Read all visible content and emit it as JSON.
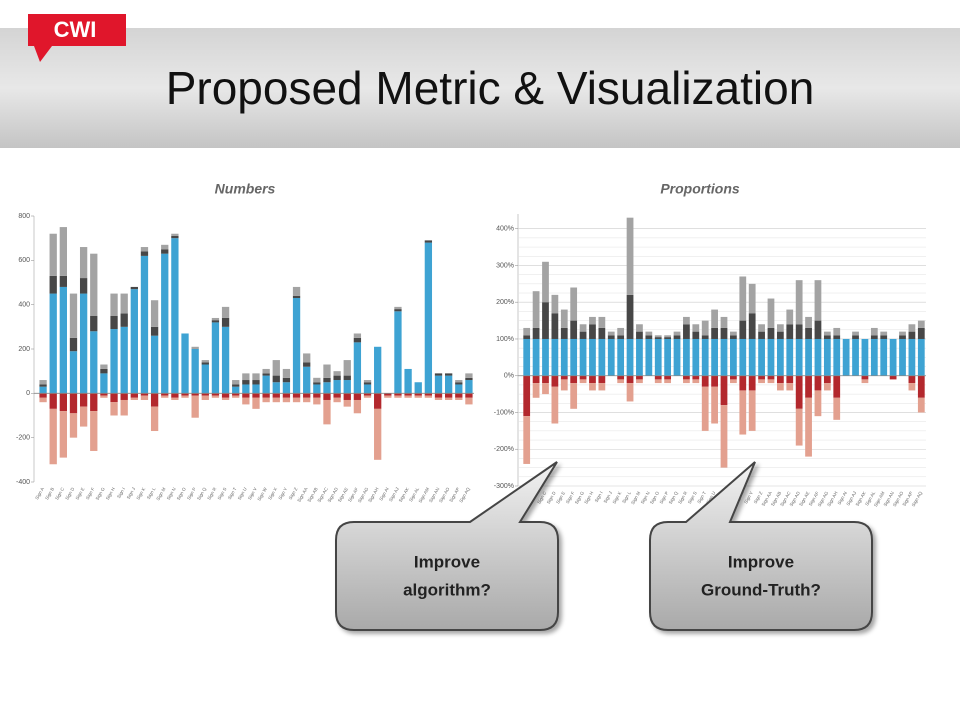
{
  "logo": "CWI",
  "title": "Proposed Metric & Visualization",
  "callouts": [
    [
      "Improve",
      "algorithm?"
    ],
    [
      "Improve",
      "Ground-Truth?"
    ]
  ],
  "chart_data": [
    {
      "type": "bar",
      "stacked": true,
      "title": "Numbers",
      "grid": false,
      "categories": [
        "Sign A",
        "Sign B",
        "Sign C",
        "Sign D",
        "Sign E",
        "Sign F",
        "Sign G",
        "Sign H",
        "Sign I",
        "Sign J",
        "Sign K",
        "Sign L",
        "Sign M",
        "Sign N",
        "Sign O",
        "Sign P",
        "Sign Q",
        "Sign R",
        "Sign S",
        "Sign T",
        "Sign U",
        "Sign V",
        "Sign W",
        "Sign X",
        "Sign Y",
        "Sign Z",
        "Sign AA",
        "Sign AB",
        "Sign AC",
        "Sign AD",
        "Sign AE",
        "Sign AF",
        "Sign AG",
        "Sign AH",
        "Sign AI",
        "Sign AJ",
        "Sign AK",
        "Sign AL",
        "Sign AM",
        "Sign AN",
        "Sign AO",
        "Sign AP",
        "Sign AQ"
      ],
      "ylim": [
        -400,
        800
      ],
      "yticks": [
        -400,
        -200,
        0,
        200,
        400,
        600,
        800
      ],
      "series": [
        {
          "color": "#3ea3d3",
          "values": [
            30,
            450,
            480,
            190,
            450,
            280,
            90,
            290,
            300,
            470,
            620,
            260,
            630,
            700,
            270,
            200,
            130,
            320,
            300,
            30,
            40,
            40,
            80,
            50,
            50,
            430,
            120,
            40,
            50,
            60,
            60,
            230,
            40,
            210,
            0,
            370,
            110,
            50,
            680,
            80,
            80,
            40,
            60
          ]
        },
        {
          "color": "#474747",
          "values": [
            10,
            80,
            50,
            60,
            70,
            70,
            20,
            60,
            60,
            10,
            20,
            40,
            20,
            10,
            0,
            0,
            10,
            10,
            40,
            10,
            20,
            20,
            10,
            30,
            20,
            10,
            20,
            10,
            20,
            20,
            20,
            20,
            10,
            0,
            0,
            10,
            0,
            0,
            10,
            10,
            10,
            10,
            10
          ]
        },
        {
          "color": "#a3a3a3",
          "values": [
            20,
            190,
            220,
            200,
            140,
            280,
            20,
            100,
            90,
            0,
            20,
            120,
            20,
            10,
            0,
            10,
            10,
            10,
            50,
            20,
            30,
            30,
            20,
            70,
            40,
            40,
            40,
            20,
            60,
            20,
            70,
            20,
            10,
            0,
            0,
            10,
            0,
            0,
            0,
            0,
            0,
            10,
            20
          ]
        },
        {
          "color": "#b3282d",
          "values": [
            -20,
            -70,
            -80,
            -90,
            -60,
            -80,
            -10,
            -40,
            -30,
            -20,
            -10,
            -60,
            -10,
            -20,
            -10,
            -10,
            -10,
            -10,
            -20,
            -10,
            -20,
            -20,
            -20,
            -20,
            -20,
            -20,
            -20,
            -20,
            -30,
            -20,
            -30,
            -30,
            -10,
            -70,
            -10,
            -10,
            -10,
            -10,
            -10,
            -20,
            -20,
            -20,
            -20
          ]
        },
        {
          "color": "#e3a08f",
          "values": [
            -20,
            -250,
            -210,
            -110,
            -90,
            -180,
            -10,
            -60,
            -70,
            -10,
            -20,
            -110,
            -10,
            -10,
            -10,
            -100,
            -20,
            -10,
            -10,
            -10,
            -30,
            -50,
            -20,
            -20,
            -20,
            -20,
            -20,
            -30,
            -110,
            -20,
            -30,
            -60,
            -10,
            -230,
            -10,
            -10,
            -10,
            -10,
            -10,
            -10,
            -10,
            -10,
            -30
          ]
        }
      ]
    },
    {
      "type": "bar",
      "stacked": true,
      "title": "Proportions",
      "grid": true,
      "categories": [
        "Sign A",
        "Sign B",
        "Sign C",
        "Sign D",
        "Sign E",
        "Sign F",
        "Sign G",
        "Sign H",
        "Sign I",
        "Sign J",
        "Sign K",
        "Sign L",
        "Sign M",
        "Sign N",
        "Sign O",
        "Sign P",
        "Sign Q",
        "Sign R",
        "Sign S",
        "Sign T",
        "Sign U",
        "Sign V",
        "Sign W",
        "Sign X",
        "Sign Y",
        "Sign Z",
        "Sign AA",
        "Sign AB",
        "Sign AC",
        "Sign AD",
        "Sign AE",
        "Sign AF",
        "Sign AG",
        "Sign AH",
        "Sign AI",
        "Sign AJ",
        "Sign AK",
        "Sign AL",
        "Sign AM",
        "Sign AN",
        "Sign AO",
        "Sign AP",
        "Sign AQ"
      ],
      "ylim": [
        -300,
        440
      ],
      "yticks": [
        {
          "value": -300,
          "label": "-300%"
        },
        {
          "value": -200,
          "label": "-200%"
        },
        {
          "value": -100,
          "label": "-100%"
        },
        {
          "value": 0,
          "label": "0%"
        },
        {
          "value": 100,
          "label": "100%"
        },
        {
          "value": 200,
          "label": "200%"
        },
        {
          "value": 300,
          "label": "300%"
        },
        {
          "value": 400,
          "label": "400%"
        }
      ],
      "series": [
        {
          "color": "#3ea3d3",
          "values": [
            100,
            100,
            100,
            100,
            100,
            100,
            100,
            100,
            100,
            100,
            100,
            100,
            100,
            100,
            100,
            100,
            100,
            100,
            100,
            100,
            100,
            100,
            100,
            100,
            100,
            100,
            100,
            100,
            100,
            100,
            100,
            100,
            100,
            100,
            100,
            100,
            100,
            100,
            100,
            100,
            100,
            100,
            100
          ]
        },
        {
          "color": "#474747",
          "values": [
            10,
            30,
            100,
            70,
            30,
            50,
            20,
            40,
            30,
            10,
            10,
            120,
            20,
            10,
            5,
            5,
            10,
            40,
            20,
            10,
            30,
            30,
            10,
            50,
            70,
            20,
            30,
            20,
            40,
            40,
            30,
            50,
            10,
            10,
            0,
            10,
            0,
            10,
            10,
            0,
            10,
            20,
            30
          ]
        },
        {
          "color": "#a3a3a3",
          "values": [
            20,
            100,
            110,
            50,
            50,
            90,
            20,
            20,
            30,
            10,
            20,
            210,
            20,
            10,
            5,
            5,
            10,
            20,
            20,
            40,
            50,
            30,
            10,
            120,
            80,
            20,
            80,
            20,
            40,
            120,
            30,
            110,
            10,
            20,
            0,
            10,
            0,
            20,
            10,
            0,
            10,
            20,
            20
          ]
        },
        {
          "color": "#b3282d",
          "values": [
            -110,
            -20,
            -20,
            -30,
            -10,
            -20,
            -10,
            -20,
            -20,
            0,
            -10,
            -20,
            -10,
            0,
            -10,
            -10,
            0,
            -10,
            -10,
            -30,
            -30,
            -80,
            -10,
            -40,
            -40,
            -10,
            -10,
            -20,
            -20,
            -90,
            -60,
            -40,
            -20,
            -60,
            0,
            0,
            -10,
            0,
            0,
            -10,
            0,
            -20,
            -60
          ]
        },
        {
          "color": "#e3a08f",
          "values": [
            -130,
            -40,
            -30,
            -100,
            -30,
            -70,
            -10,
            -20,
            -20,
            0,
            -10,
            -50,
            -10,
            0,
            -10,
            -10,
            0,
            -10,
            -10,
            -120,
            -100,
            -170,
            -10,
            -120,
            -110,
            -10,
            -10,
            -20,
            -20,
            -100,
            -160,
            -70,
            -20,
            -60,
            0,
            0,
            -10,
            0,
            0,
            0,
            0,
            -20,
            -40
          ]
        }
      ]
    }
  ]
}
